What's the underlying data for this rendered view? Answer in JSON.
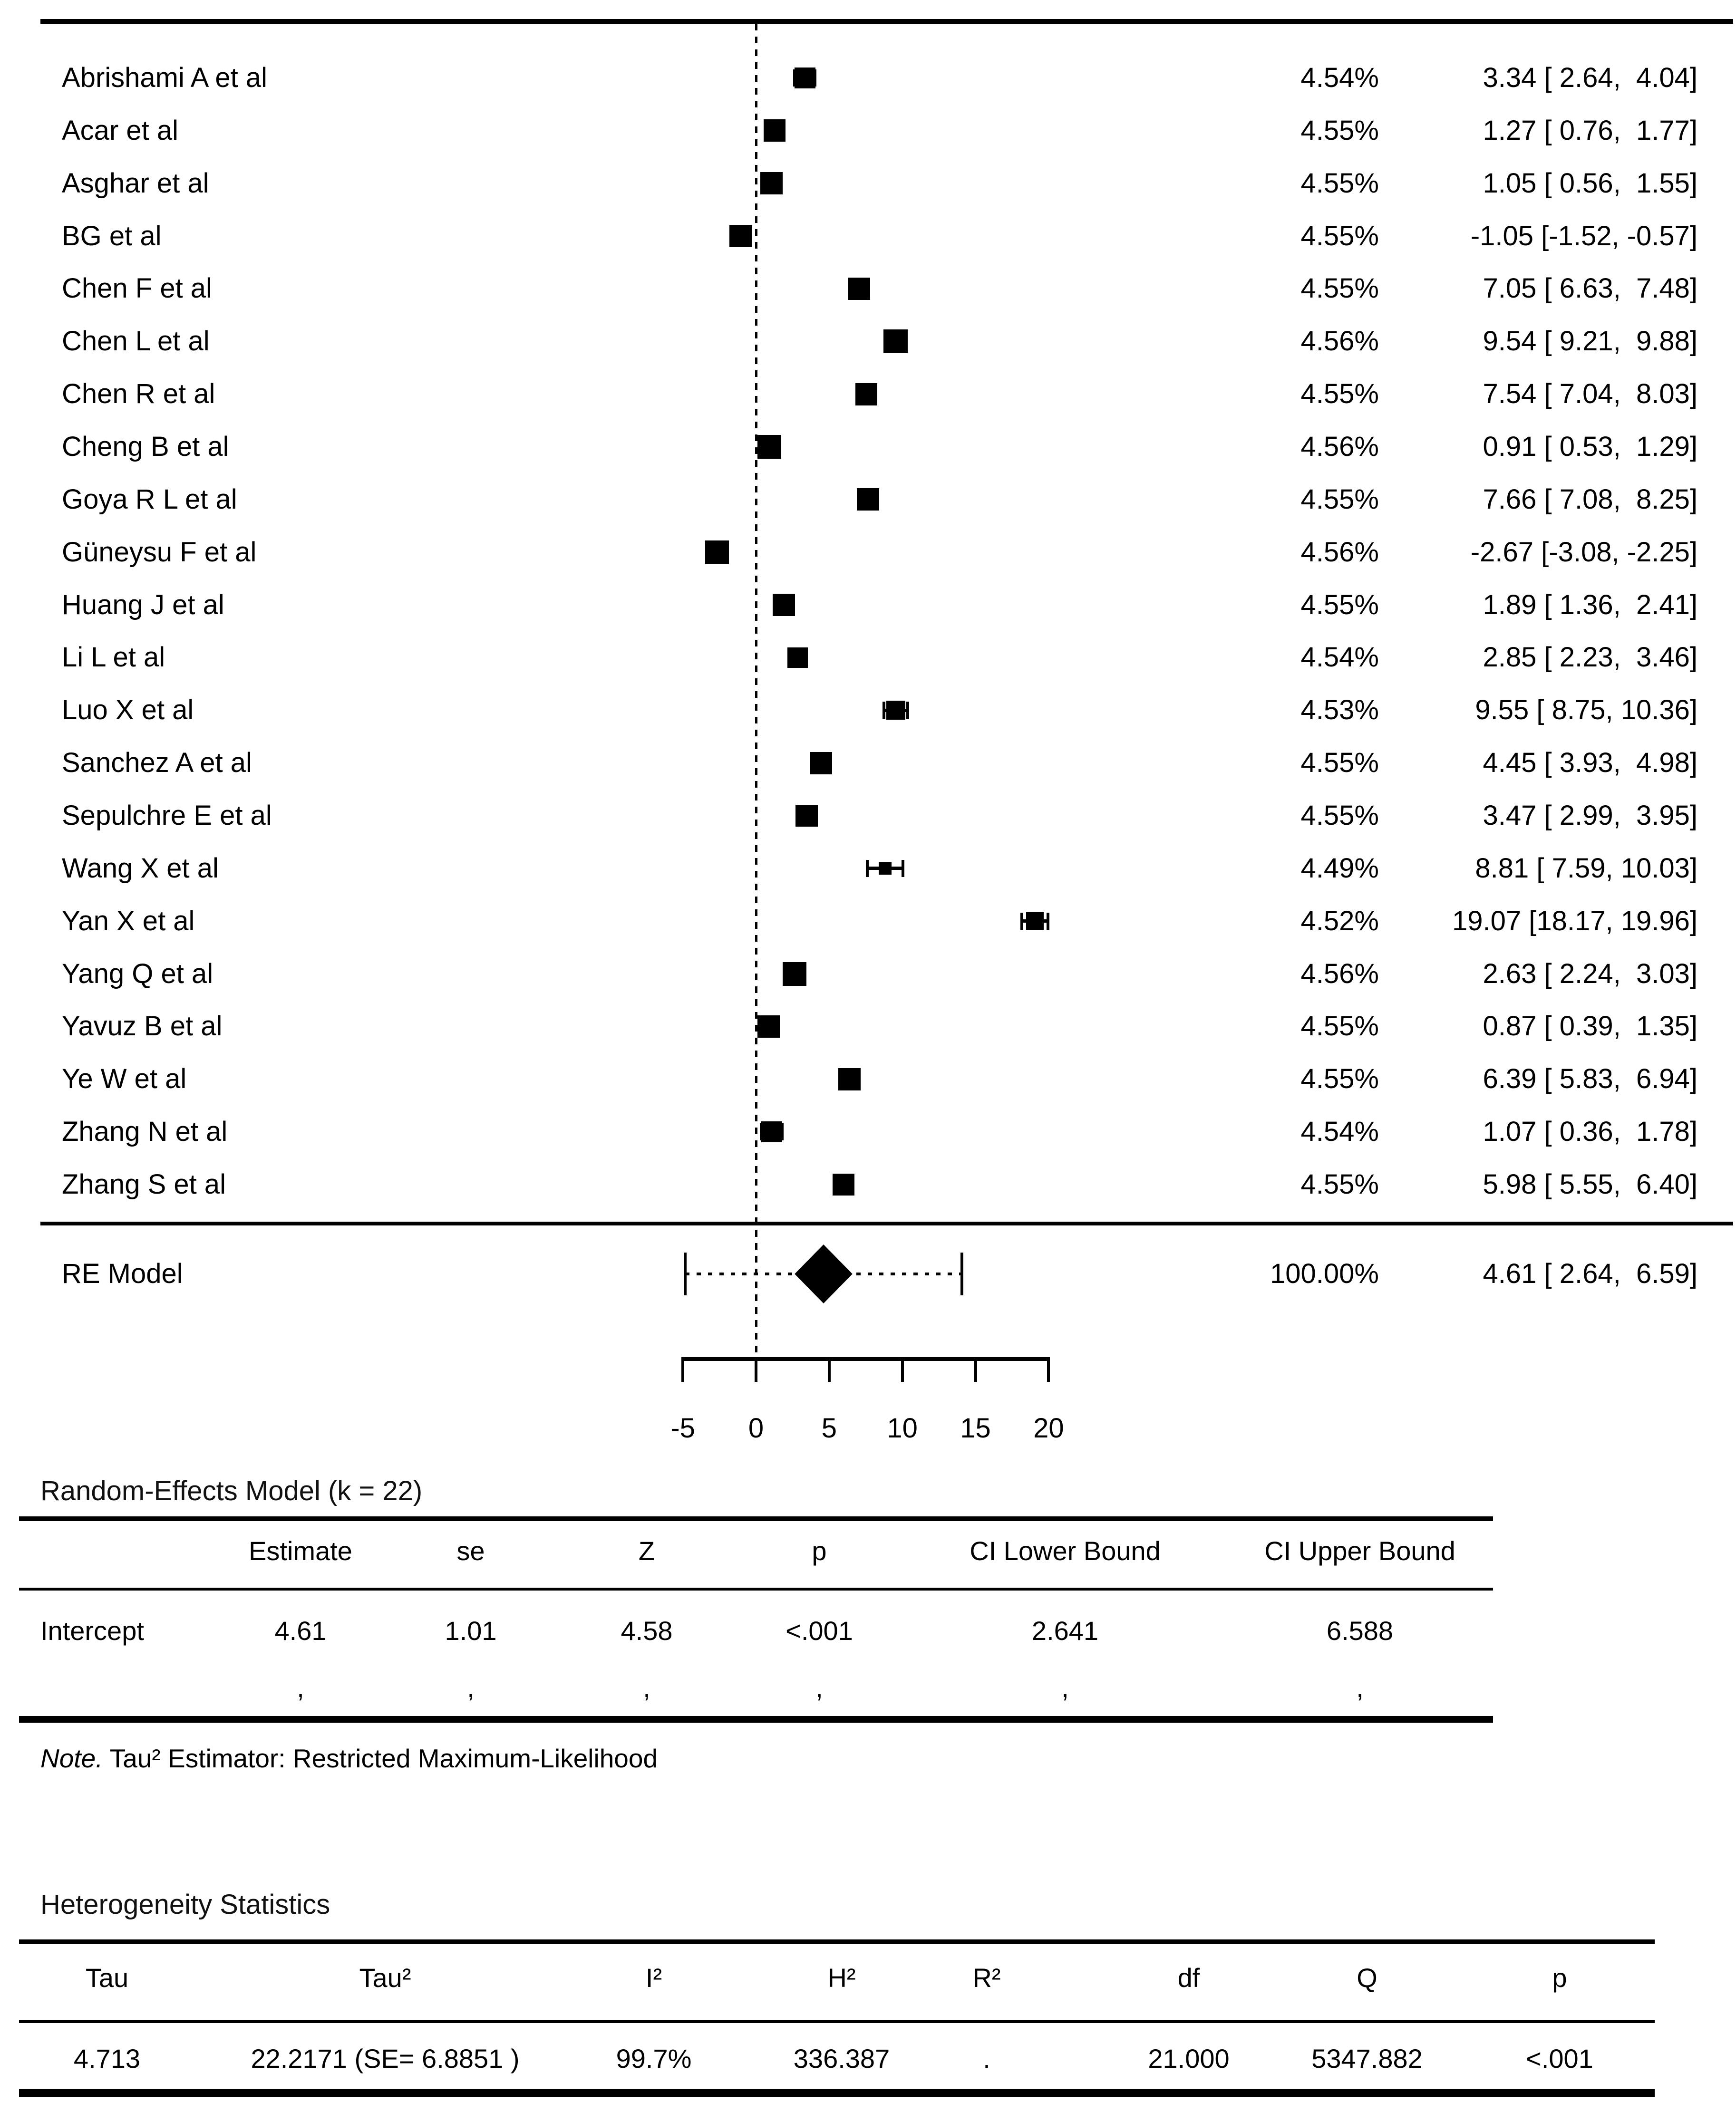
{
  "chart_data": {
    "type": "forest",
    "x_ticks": [
      "-5",
      "0",
      "5",
      "10",
      "15",
      "20"
    ],
    "xlim": [
      -5,
      20
    ],
    "grid": false,
    "studies": [
      {
        "label": "Abrishami A et al",
        "weight": "4.54%",
        "w": 4.54,
        "est": 3.34,
        "lo": 2.64,
        "hi": 4.04,
        "text": "3.34 [ 2.64,  4.04]"
      },
      {
        "label": "Acar et al",
        "weight": "4.55%",
        "w": 4.55,
        "est": 1.27,
        "lo": 0.76,
        "hi": 1.77,
        "text": "1.27 [ 0.76,  1.77]"
      },
      {
        "label": "Asghar et al",
        "weight": "4.55%",
        "w": 4.55,
        "est": 1.05,
        "lo": 0.56,
        "hi": 1.55,
        "text": "1.05 [ 0.56,  1.55]"
      },
      {
        "label": "BG et al",
        "weight": "4.55%",
        "w": 4.55,
        "est": -1.05,
        "lo": -1.52,
        "hi": -0.57,
        "text": "-1.05 [-1.52, -0.57]"
      },
      {
        "label": "Chen F et al",
        "weight": "4.55%",
        "w": 4.55,
        "est": 7.05,
        "lo": 6.63,
        "hi": 7.48,
        "text": "7.05 [ 6.63,  7.48]"
      },
      {
        "label": "Chen L et al",
        "weight": "4.56%",
        "w": 4.56,
        "est": 9.54,
        "lo": 9.21,
        "hi": 9.88,
        "text": "9.54 [ 9.21,  9.88]"
      },
      {
        "label": "Chen R et al",
        "weight": "4.55%",
        "w": 4.55,
        "est": 7.54,
        "lo": 7.04,
        "hi": 8.03,
        "text": "7.54 [ 7.04,  8.03]"
      },
      {
        "label": "Cheng B et al",
        "weight": "4.56%",
        "w": 4.56,
        "est": 0.91,
        "lo": 0.53,
        "hi": 1.29,
        "text": "0.91 [ 0.53,  1.29]"
      },
      {
        "label": "Goya R L et al",
        "weight": "4.55%",
        "w": 4.55,
        "est": 7.66,
        "lo": 7.08,
        "hi": 8.25,
        "text": "7.66 [ 7.08,  8.25]"
      },
      {
        "label": "Güneysu F et al",
        "weight": "4.56%",
        "w": 4.56,
        "est": -2.67,
        "lo": -3.08,
        "hi": -2.25,
        "text": "-2.67 [-3.08, -2.25]"
      },
      {
        "label": "Huang J et al",
        "weight": "4.55%",
        "w": 4.55,
        "est": 1.89,
        "lo": 1.36,
        "hi": 2.41,
        "text": "1.89 [ 1.36,  2.41]"
      },
      {
        "label": "Li L et al",
        "weight": "4.54%",
        "w": 4.54,
        "est": 2.85,
        "lo": 2.23,
        "hi": 3.46,
        "text": "2.85 [ 2.23,  3.46]"
      },
      {
        "label": "Luo X et al",
        "weight": "4.53%",
        "w": 4.53,
        "est": 9.55,
        "lo": 8.75,
        "hi": 10.36,
        "text": "9.55 [ 8.75, 10.36]"
      },
      {
        "label": "Sanchez A et al",
        "weight": "4.55%",
        "w": 4.55,
        "est": 4.45,
        "lo": 3.93,
        "hi": 4.98,
        "text": "4.45 [ 3.93,  4.98]"
      },
      {
        "label": "Sepulchre E et al",
        "weight": "4.55%",
        "w": 4.55,
        "est": 3.47,
        "lo": 2.99,
        "hi": 3.95,
        "text": "3.47 [ 2.99,  3.95]"
      },
      {
        "label": "Wang X et al",
        "weight": "4.49%",
        "w": 4.49,
        "est": 8.81,
        "lo": 7.59,
        "hi": 10.03,
        "text": "8.81 [ 7.59, 10.03]"
      },
      {
        "label": "Yan X et al",
        "weight": "4.52%",
        "w": 4.52,
        "est": 19.07,
        "lo": 18.17,
        "hi": 19.96,
        "text": "19.07 [18.17, 19.96]"
      },
      {
        "label": "Yang Q et al",
        "weight": "4.56%",
        "w": 4.56,
        "est": 2.63,
        "lo": 2.24,
        "hi": 3.03,
        "text": "2.63 [ 2.24,  3.03]"
      },
      {
        "label": "Yavuz B et al",
        "weight": "4.55%",
        "w": 4.55,
        "est": 0.87,
        "lo": 0.39,
        "hi": 1.35,
        "text": "0.87 [ 0.39,  1.35]"
      },
      {
        "label": "Ye W et al",
        "weight": "4.55%",
        "w": 4.55,
        "est": 6.39,
        "lo": 5.83,
        "hi": 6.94,
        "text": "6.39 [ 5.83,  6.94]"
      },
      {
        "label": "Zhang N et al",
        "weight": "4.54%",
        "w": 4.54,
        "est": 1.07,
        "lo": 0.36,
        "hi": 1.78,
        "text": "1.07 [ 0.36,  1.78]"
      },
      {
        "label": "Zhang S et al",
        "weight": "4.55%",
        "w": 4.55,
        "est": 5.98,
        "lo": 5.55,
        "hi": 6.4,
        "text": "5.98 [ 5.55,  6.40]"
      }
    ],
    "summary": {
      "label": "RE Model",
      "weight": "100.00%",
      "est": 4.61,
      "lo": 2.64,
      "hi": 6.59,
      "pi_lo": -4.84,
      "pi_hi": 14.06,
      "text": "4.61 [ 2.64,  6.59]"
    }
  },
  "re_table": {
    "title": "Random-Effects Model (k = 22)",
    "headers": [
      "Estimate",
      "se",
      "Z",
      "p",
      "CI Lower Bound",
      "CI Upper Bound"
    ],
    "row_label": "Intercept",
    "row_values": [
      "4.61",
      "1.01",
      "4.58",
      "<.001",
      "2.641",
      "6.588"
    ],
    "footer_marks": [
      ",",
      ",",
      ",",
      ",",
      ",",
      ","
    ],
    "note_prefix": "Note.",
    "note_text": " Tau² Estimator: Restricted Maximum-Likelihood"
  },
  "het_table": {
    "title": "Heterogeneity Statistics",
    "headers": [
      "Tau",
      "Tau²",
      "I²",
      "H²",
      "R²",
      "df",
      "Q",
      "p"
    ],
    "values": [
      "4.713",
      "22.2171 (SE= 6.8851 )",
      "99.7%",
      "336.387",
      ".",
      "21.000",
      "5347.882",
      "<.001"
    ]
  }
}
